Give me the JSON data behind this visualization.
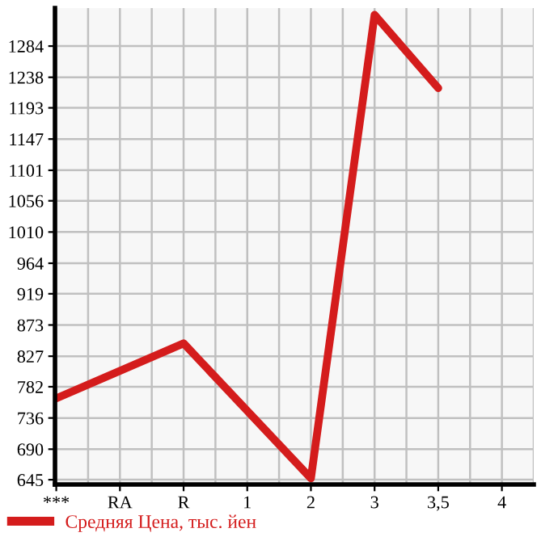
{
  "chart_data": {
    "type": "line",
    "categories": [
      "***",
      "RA",
      "R",
      "1",
      "2",
      "3",
      "3,5",
      "4"
    ],
    "series": [
      {
        "name": "Средняя Цена, тыс. йен",
        "color": "#d41c1c",
        "values": [
          765,
          null,
          846,
          null,
          647,
          1330,
          1222,
          null
        ]
      }
    ],
    "ylim": [
      638,
      1340
    ],
    "yticks": [
      645,
      690,
      736,
      782,
      827,
      873,
      919,
      964,
      1010,
      1056,
      1101,
      1147,
      1193,
      1238,
      1284
    ],
    "grid": true,
    "legend": "bottom left",
    "marker": "none",
    "line_style": "solid"
  }
}
